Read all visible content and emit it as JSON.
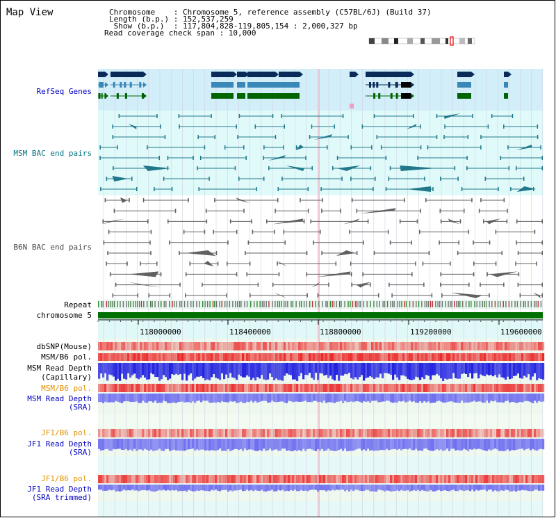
{
  "title": "Map View",
  "info": {
    "line1": "Chromosome    : Chromosome 5, reference assembly (C57BL/6J) (Build 37)",
    "line2": "Length (b.p.) : 152,537,259",
    "line3": " Show (b.p.)  : 117,804,828-119,805,154 : 2,000,327 bp",
    "line4": "Read coverage check span : 10,000"
  },
  "tracks": {
    "refseq": "RefSeq Genes",
    "msm_bac": "MSM BAC end pairs",
    "b6n_bac": "B6N BAC end pairs",
    "repeat": "Repeat",
    "chromosome": "chromosome 5",
    "dbsnp": "dbSNP(Mouse)",
    "msm_b6_pol": "MSM/B6 pol.",
    "msm_depth_cap_1": "MSM Read Depth",
    "msm_depth_cap_2": "(Capillary)",
    "msm_b6_pol_sra": "MSM/B6 pol.",
    "msm_depth_sra_1": "MSM Read Depth",
    "msm_depth_sra_2": "(SRA)",
    "jf1_b6_pol": "JF1/B6 pol.",
    "jf1_depth_1": "JF1 Read Depth",
    "jf1_depth_2": "(SRA)",
    "jf1_b6_pol_trim": "JF1/B6 pol.",
    "jf1_depth_trim_1": "JF1 Read Depth",
    "jf1_depth_trim_2": "(SRA trimmed)"
  },
  "axis_ticks": [
    "118000000",
    "118400000",
    "118800000",
    "119200000",
    "119600000"
  ],
  "colors": {
    "refseq_dark": "#0a2a5a",
    "refseq_mid": "#3a88b8",
    "refseq_green": "#006400",
    "msm_bg": "#e0fafa",
    "refseq_bg": "#d2eef8",
    "chromosome": "#007000",
    "axis_bg": "#e0f8f8",
    "capillary": "#2020e0",
    "sra_depth": "#7070f0"
  }
}
